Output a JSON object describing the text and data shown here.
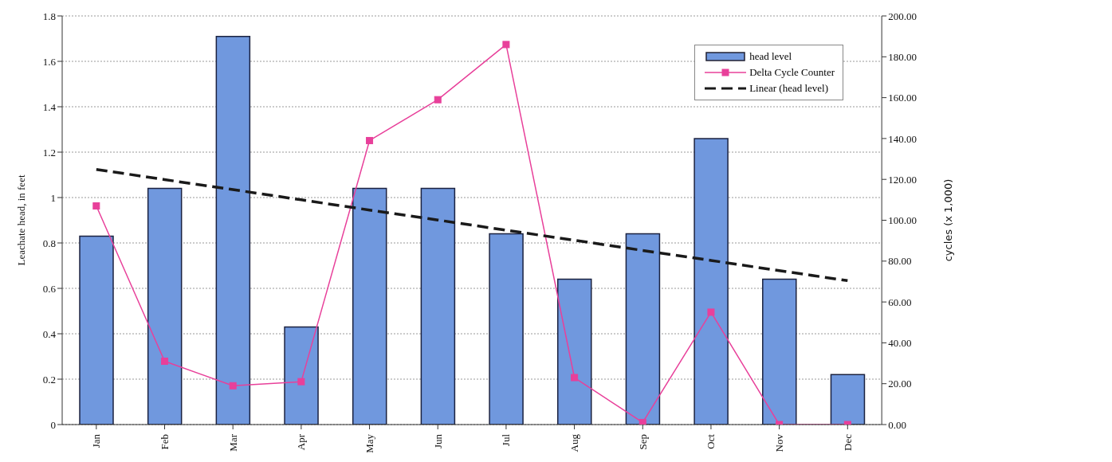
{
  "chart_data": {
    "type": "bar",
    "ylabel": "Leachate head, in feet",
    "y2label": "cycles (x 1,000)",
    "categories": [
      "Jan",
      "Feb",
      "Mar",
      "Apr",
      "May",
      "Jun",
      "Jul",
      "Aug",
      "Sep",
      "Oct",
      "Nov",
      "Dec"
    ],
    "series": [
      {
        "name": "head level",
        "color": "#7098de",
        "values": [
          0.83,
          1.04,
          1.71,
          0.43,
          1.04,
          1.04,
          0.84,
          0.64,
          0.84,
          1.26,
          0.64,
          0.22
        ]
      },
      {
        "name": "Delta Cycle Counter",
        "type": "line",
        "axis": "y2",
        "color": "#e8409a",
        "marker": "square",
        "line_style": "solid",
        "values": [
          107,
          31,
          19,
          21,
          139,
          159,
          186,
          23,
          1,
          55,
          0,
          0
        ]
      },
      {
        "name": "Linear (head level)",
        "type": "line",
        "color": "#1a1a1a",
        "marker": "none",
        "line_style": "dashed",
        "values": [
          1.124,
          1.079,
          1.035,
          0.99,
          0.945,
          0.901,
          0.856,
          0.812,
          0.767,
          0.723,
          0.678,
          0.634
        ]
      }
    ],
    "ylim": [
      0,
      1.8
    ],
    "yticks": [
      0,
      0.2,
      0.4,
      0.6,
      0.8,
      1,
      1.2,
      1.4,
      1.6,
      1.8
    ],
    "y2lim": [
      0,
      200
    ],
    "y2ticks": [
      {
        "value": 0,
        "label": "0.00"
      },
      {
        "value": 20,
        "label": "20.00"
      },
      {
        "value": 40,
        "label": "40.00"
      },
      {
        "value": 60,
        "label": "60.00"
      },
      {
        "value": 80,
        "label": "80.00"
      },
      {
        "value": 100,
        "label": "100.00"
      },
      {
        "value": 120,
        "label": "120.00"
      },
      {
        "value": 140,
        "label": "140.00"
      },
      {
        "value": 160,
        "label": "160.00"
      },
      {
        "value": 180,
        "label": "180.00"
      },
      {
        "value": 200,
        "label": "200.00"
      }
    ],
    "grid": "y",
    "legend": "top right"
  }
}
